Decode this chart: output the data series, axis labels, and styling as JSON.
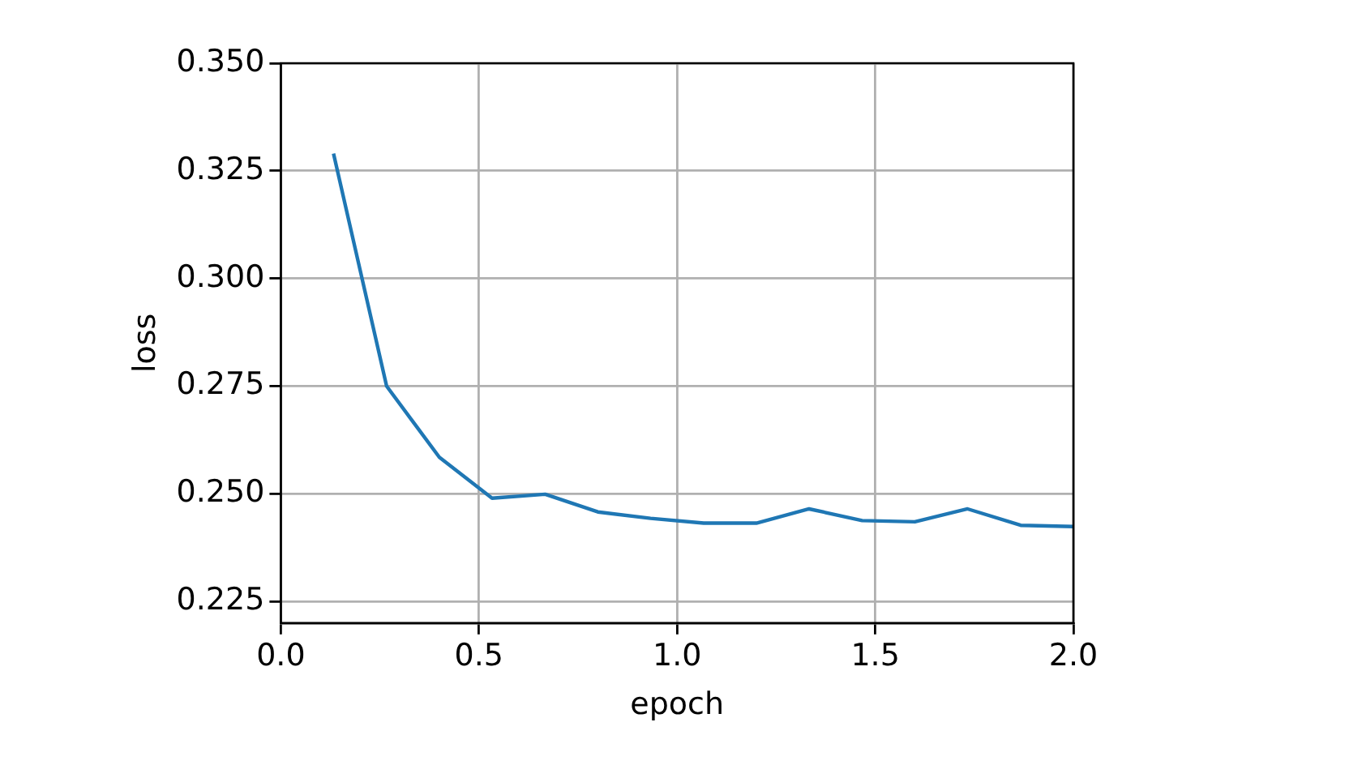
{
  "chart_data": {
    "type": "line",
    "xlabel": "epoch",
    "ylabel": "loss",
    "x": [
      0.133,
      0.267,
      0.4,
      0.533,
      0.667,
      0.8,
      0.933,
      1.067,
      1.2,
      1.333,
      1.467,
      1.6,
      1.733,
      1.867,
      2.0
    ],
    "series": [
      {
        "color": "#1f77b4",
        "values": [
          0.329,
          0.275,
          0.2585,
          0.249,
          0.2499,
          0.2458,
          0.2443,
          0.2432,
          0.2432,
          0.2465,
          0.2438,
          0.2435,
          0.2465,
          0.2427,
          0.2424
        ]
      }
    ],
    "xlim": [
      0,
      2
    ],
    "xticks": [
      {
        "value": 0,
        "label": "0.0"
      },
      {
        "value": 0.5,
        "label": "0.5"
      },
      {
        "value": 1,
        "label": "1.0"
      },
      {
        "value": 1.5,
        "label": "1.5"
      },
      {
        "value": 2,
        "label": "2.0"
      }
    ],
    "ylim": [
      0.22,
      0.35
    ],
    "yticks": [
      {
        "value": 0.225,
        "label": "0.225"
      },
      {
        "value": 0.25,
        "label": "0.250"
      },
      {
        "value": 0.275,
        "label": "0.275"
      },
      {
        "value": 0.3,
        "label": "0.300"
      },
      {
        "value": 0.325,
        "label": "0.325"
      },
      {
        "value": 0.35,
        "label": "0.350"
      }
    ],
    "grid": true,
    "legend": false,
    "marker": "none",
    "line_style": "solid"
  }
}
